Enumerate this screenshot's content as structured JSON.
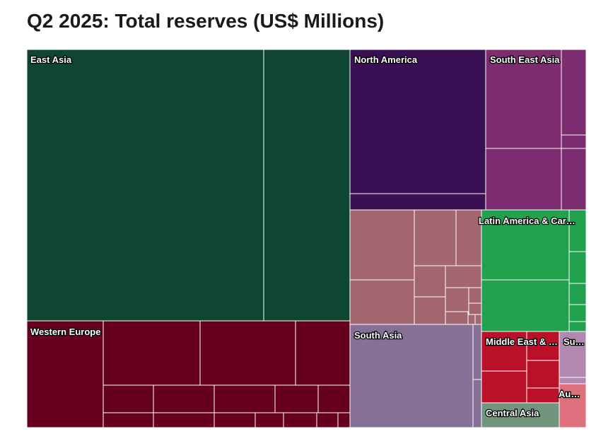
{
  "chart_data": {
    "type": "treemap",
    "title": "Q2 2025: Total reserves (US$ Millions)",
    "groups": [
      {
        "label": "East Asia",
        "color": "#0f4632"
      },
      {
        "label": "Western Europe",
        "color": "#67001f"
      },
      {
        "label": "North America",
        "color": "#3a0f53"
      },
      {
        "label": "South East Asia",
        "color": "#7b2d6f"
      },
      {
        "label": "Latin America & Car…",
        "color": "#22a24f"
      },
      {
        "label": "South Asia",
        "color": "#857195"
      },
      {
        "label": "Middle East & …",
        "color": "#bb1128"
      },
      {
        "label": "Su…",
        "color": "#b088b0"
      },
      {
        "label": "Au…",
        "color": "#de6f7c"
      },
      {
        "label": "Central Asia",
        "color": "#72957e"
      },
      {
        "label": "",
        "color": "#a36670"
      }
    ]
  }
}
